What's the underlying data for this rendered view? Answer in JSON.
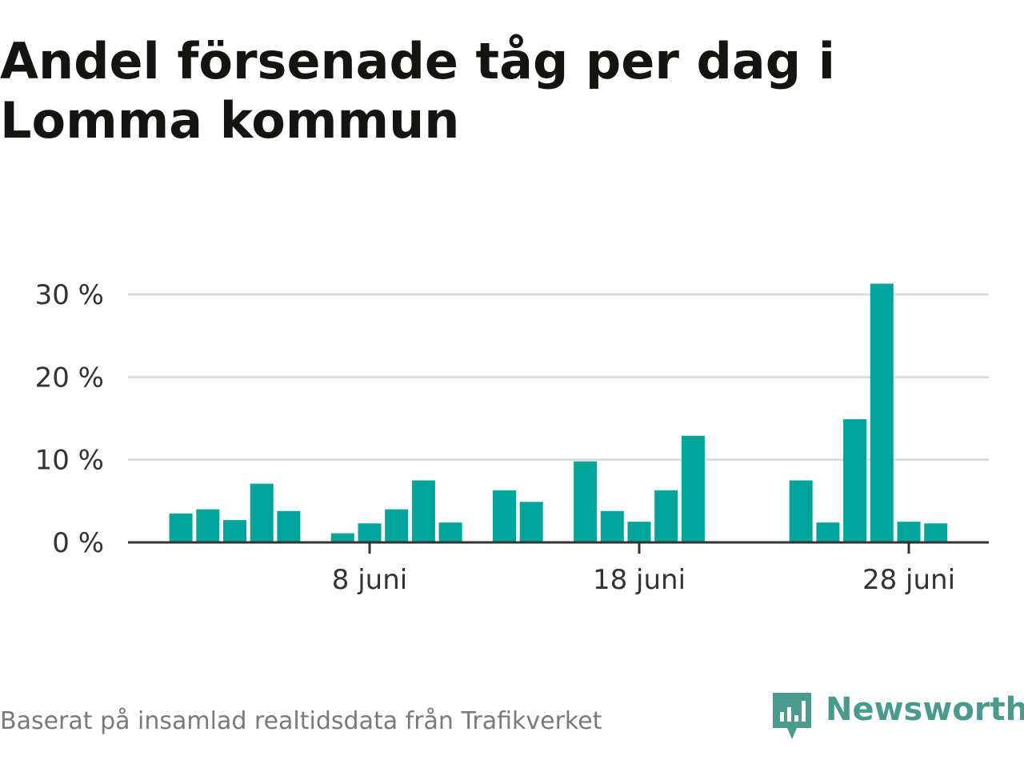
{
  "title": "Andel försenade tåg per dag i Lomma kommun",
  "source": "Baserat på insamlad realtidsdata från Trafikverket",
  "brand": {
    "name": "Newsworthy",
    "icon": "newsworthy-logo-icon"
  },
  "colors": {
    "bar": "#00a49a",
    "grid": "#dddddd",
    "axis": "#333333",
    "brand": "#4a9a8e"
  },
  "chart_data": {
    "type": "bar",
    "ylim": [
      0,
      30
    ],
    "yticks": [
      "0 %",
      "10 %",
      "20 %",
      "30 %"
    ],
    "ytick_values": [
      0,
      10,
      20,
      30
    ],
    "xticks": [
      "8 juni",
      "18 juni",
      "28 juni"
    ],
    "xtick_days": [
      8,
      18,
      28
    ],
    "grid": true,
    "xlabel": "",
    "ylabel": "",
    "days": [
      1,
      2,
      3,
      4,
      5,
      6,
      7,
      8,
      9,
      10,
      11,
      12,
      13,
      14,
      15,
      16,
      17,
      18,
      19,
      20,
      21,
      22,
      23,
      24,
      25,
      26,
      27,
      28,
      29,
      30
    ],
    "values": [
      3.5,
      4.0,
      2.7,
      7.1,
      3.8,
      null,
      1.1,
      2.3,
      4.0,
      7.5,
      2.4,
      null,
      6.3,
      4.9,
      null,
      9.8,
      3.8,
      2.5,
      6.3,
      12.9,
      null,
      null,
      null,
      7.5,
      2.4,
      14.9,
      31.3,
      2.5,
      2.3,
      null
    ]
  }
}
